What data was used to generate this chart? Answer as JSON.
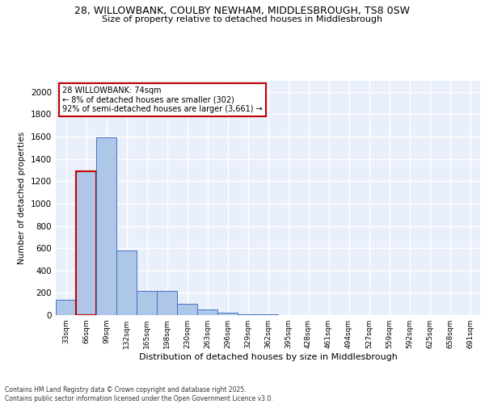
{
  "title_line1": "28, WILLOWBANK, COULBY NEWHAM, MIDDLESBROUGH, TS8 0SW",
  "title_line2": "Size of property relative to detached houses in Middlesbrough",
  "xlabel": "Distribution of detached houses by size in Middlesbrough",
  "ylabel": "Number of detached properties",
  "categories": [
    "33sqm",
    "66sqm",
    "99sqm",
    "132sqm",
    "165sqm",
    "198sqm",
    "230sqm",
    "263sqm",
    "296sqm",
    "329sqm",
    "362sqm",
    "395sqm",
    "428sqm",
    "461sqm",
    "494sqm",
    "527sqm",
    "559sqm",
    "592sqm",
    "625sqm",
    "658sqm",
    "691sqm"
  ],
  "values": [
    140,
    1290,
    1590,
    580,
    215,
    215,
    100,
    50,
    25,
    10,
    5,
    2,
    1,
    1,
    0,
    0,
    0,
    0,
    0,
    0,
    0
  ],
  "bar_color": "#aec6e8",
  "bar_edge_color": "#4472c4",
  "highlight_bar_index": 1,
  "highlight_bar_edge_color": "#c00000",
  "annotation_box_text": "28 WILLOWBANK: 74sqm\n← 8% of detached houses are smaller (302)\n92% of semi-detached houses are larger (3,661) →",
  "annotation_box_color": "#ffffff",
  "annotation_box_edge_color": "#c00000",
  "ylim": [
    0,
    2100
  ],
  "yticks": [
    0,
    200,
    400,
    600,
    800,
    1000,
    1200,
    1400,
    1600,
    1800,
    2000
  ],
  "bg_color": "#eaf0fb",
  "grid_color": "#ffffff",
  "footnote": "Contains HM Land Registry data © Crown copyright and database right 2025.\nContains public sector information licensed under the Open Government Licence v3.0.",
  "fig_bg_color": "#ffffff"
}
